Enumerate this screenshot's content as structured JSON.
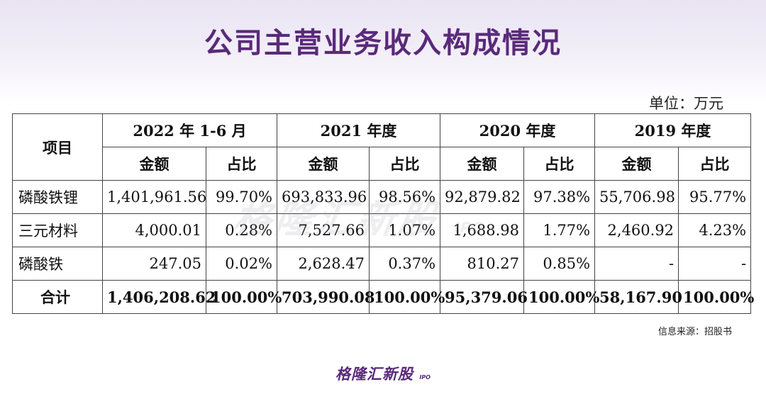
{
  "title": "公司主营业务收入构成情况",
  "unit": "单位：万元",
  "table": {
    "item_header": "项目",
    "periods": [
      "2022 年 1-6 月",
      "2021 年度",
      "2020 年度",
      "2019 年度"
    ],
    "sub_headers": {
      "amount": "金额",
      "ratio": "占比"
    },
    "rows": [
      {
        "label": "磷酸铁锂",
        "cells": [
          "1,401,961.56",
          "99.70%",
          "693,833.96",
          "98.56%",
          "92,879.82",
          "97.38%",
          "55,706.98",
          "95.77%"
        ]
      },
      {
        "label": "三元材料",
        "cells": [
          "4,000.01",
          "0.28%",
          "7,527.66",
          "1.07%",
          "1,688.98",
          "1.77%",
          "2,460.92",
          "4.23%"
        ]
      },
      {
        "label": "磷酸铁",
        "cells": [
          "247.05",
          "0.02%",
          "2,628.47",
          "0.37%",
          "810.27",
          "0.85%",
          "-",
          "-"
        ]
      },
      {
        "label": "合计",
        "cells": [
          "1,406,208.62",
          "100.00%",
          "703,990.08",
          "100.00%",
          "95,379.06",
          "100.00%",
          "58,167.90",
          "100.00%"
        ]
      }
    ]
  },
  "source": "信息来源：招股书",
  "watermark": {
    "main": "格隆汇新股",
    "sub": "IPO"
  },
  "logo": {
    "main": "格隆汇新股",
    "sub": "IPO"
  }
}
